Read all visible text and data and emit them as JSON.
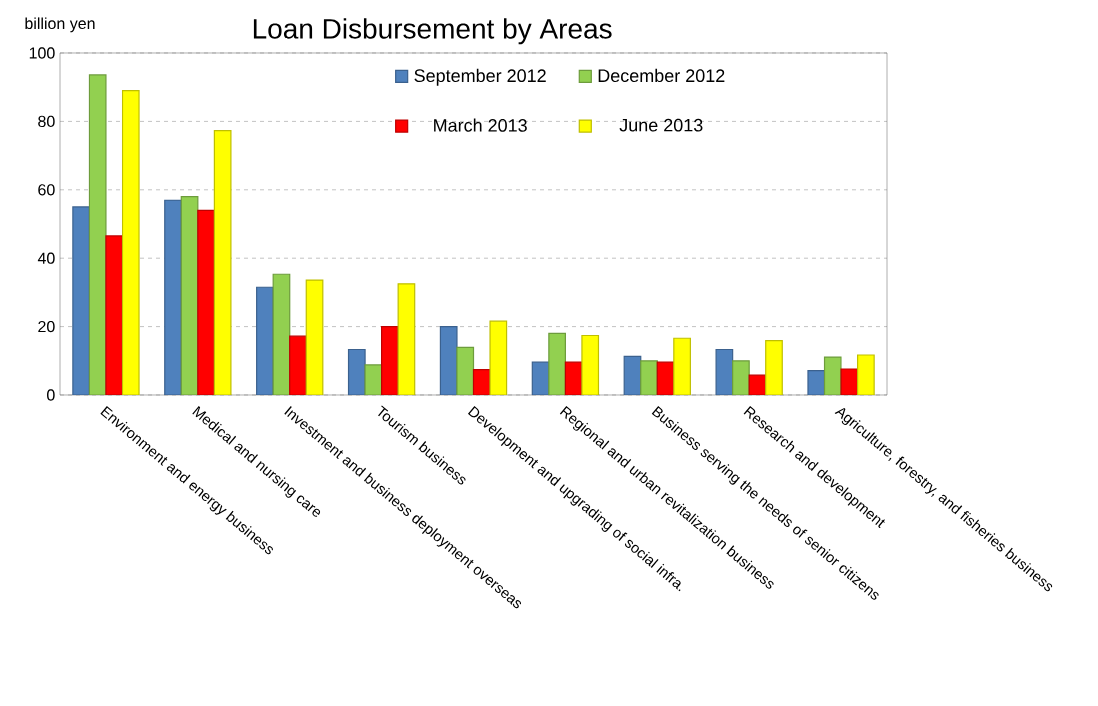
{
  "chart_data": {
    "type": "bar",
    "title": "Loan Disbursement by Areas",
    "ylabel": "billion yen",
    "categories": [
      "Environment and energy business",
      "Medical and nursing care",
      "Investment and business deployment overseas",
      "Tourism business",
      "Development and upgrading of social infra.",
      "Regional and urban revitalization business",
      "Business serving the needs of senior citizens",
      "Research and development",
      "Agriculture, forestry, and fisheries business"
    ],
    "series": [
      {
        "name": "September 2012",
        "color": "#4f81bd",
        "values": [
          55,
          57,
          31.5,
          13.3,
          20,
          9.6,
          11.3,
          13.3,
          7.1
        ]
      },
      {
        "name": "December 2012",
        "color": "#92d050",
        "values": [
          93.6,
          58,
          35.3,
          8.8,
          13.9,
          18,
          10,
          10,
          11.1
        ]
      },
      {
        "name": "March 2013",
        "color": "#ff0000",
        "values": [
          46.5,
          54,
          17.2,
          20,
          7.4,
          9.6,
          9.6,
          5.8,
          7.6
        ]
      },
      {
        "name": "June 2013",
        "color": "#ffff00",
        "values": [
          89,
          77.3,
          33.6,
          32.5,
          21.6,
          17.4,
          16.6,
          15.9,
          11.7
        ]
      }
    ],
    "ylim": [
      0,
      100
    ],
    "yticks": [
      0,
      20,
      40,
      60,
      80,
      100
    ],
    "grid": "y",
    "legend": "top"
  }
}
